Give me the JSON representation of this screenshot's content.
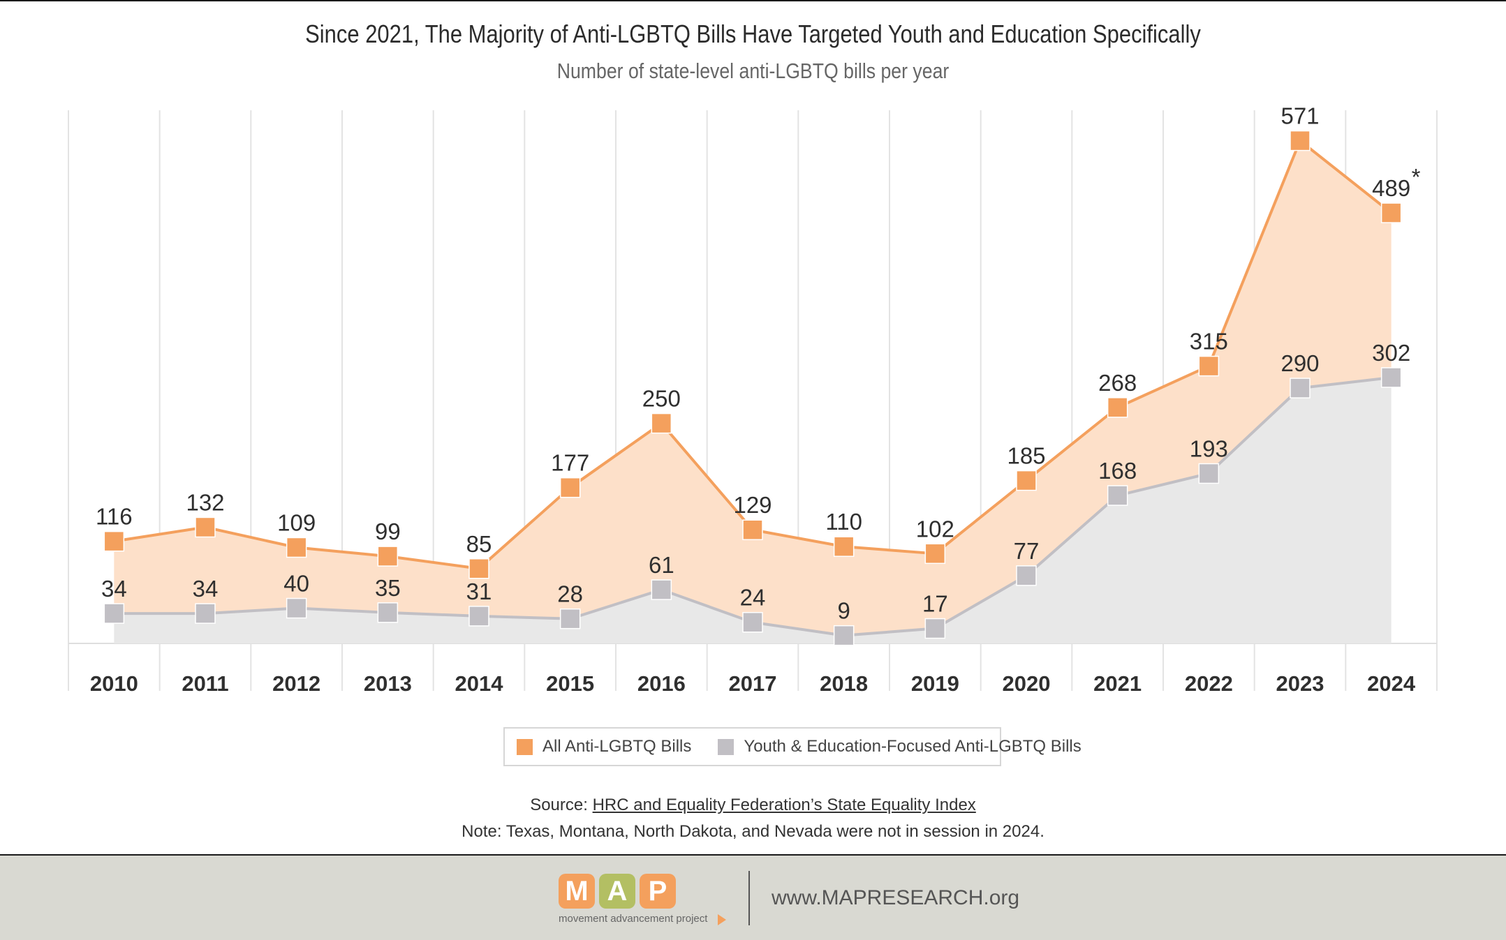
{
  "header": {
    "title": "Since 2021, The Majority of Anti-LGBTQ Bills Have Targeted Youth and Education Specifically",
    "subtitle": "Number of state-level anti-LGBTQ bills per year"
  },
  "chart_data": {
    "type": "area",
    "title": "Since 2021, The Majority of Anti-LGBTQ Bills Have Targeted Youth and Education Specifically",
    "subtitle": "Number of state-level anti-LGBTQ bills per year",
    "xlabel": "",
    "ylabel": "",
    "ylim": [
      0,
      600
    ],
    "grid": "vertical",
    "legend_position": "bottom-center",
    "categories": [
      "2010",
      "2011",
      "2012",
      "2013",
      "2014",
      "2015",
      "2016",
      "2017",
      "2018",
      "2019",
      "2020",
      "2021",
      "2022",
      "2023",
      "2024"
    ],
    "series": [
      {
        "name": "All Anti-LGBTQ Bills",
        "color": "#f4a05d",
        "fill": "#fde0c9",
        "values": [
          116,
          132,
          109,
          99,
          85,
          177,
          250,
          129,
          110,
          102,
          185,
          268,
          315,
          571,
          489
        ],
        "annotations": [
          "",
          "",
          "",
          "",
          "",
          "",
          "",
          "",
          "",
          "",
          "",
          "",
          "",
          "",
          "*"
        ]
      },
      {
        "name": "Youth & Education-Focused Anti-LGBTQ Bills",
        "color": "#c1bfc4",
        "fill": "#e8e8e8",
        "values": [
          34,
          34,
          40,
          35,
          31,
          28,
          61,
          24,
          9,
          17,
          77,
          168,
          193,
          290,
          302
        ]
      }
    ]
  },
  "legend": {
    "items": [
      {
        "label": "All Anti-LGBTQ Bills",
        "color": "#f4a05d"
      },
      {
        "label": "Youth & Education-Focused Anti-LGBTQ Bills",
        "color": "#c1bfc4"
      }
    ]
  },
  "source": {
    "prefix": "Source: ",
    "link_text": "HRC and Equality Federation’s State Equality Index"
  },
  "note": "Note: Texas, Montana, North Dakota, and Nevada were not in session in 2024.",
  "footer": {
    "logo_letters": [
      "M",
      "A",
      "P"
    ],
    "logo_colors": [
      "#f4a05d",
      "#b3bf63",
      "#f4a05d"
    ],
    "tagline": "movement advancement project",
    "website": "www.MAPRESEARCH.org"
  }
}
